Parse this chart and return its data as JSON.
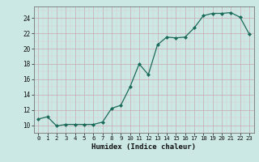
{
  "x": [
    0,
    1,
    2,
    3,
    4,
    5,
    6,
    7,
    8,
    9,
    10,
    11,
    12,
    13,
    14,
    15,
    16,
    17,
    18,
    19,
    20,
    21,
    22,
    23
  ],
  "y": [
    10.8,
    11.1,
    9.9,
    10.1,
    10.1,
    10.1,
    10.1,
    10.4,
    12.2,
    12.6,
    15.0,
    18.0,
    16.6,
    20.5,
    21.5,
    21.4,
    21.5,
    22.7,
    24.3,
    24.6,
    24.6,
    24.7,
    24.1,
    21.9
  ],
  "xlabel": "Humidex (Indice chaleur)",
  "ylim": [
    9,
    25.5
  ],
  "xlim": [
    -0.5,
    23.5
  ],
  "yticks": [
    10,
    12,
    14,
    16,
    18,
    20,
    22,
    24
  ],
  "xticks": [
    0,
    1,
    2,
    3,
    4,
    5,
    6,
    7,
    8,
    9,
    10,
    11,
    12,
    13,
    14,
    15,
    16,
    17,
    18,
    19,
    20,
    21,
    22,
    23
  ],
  "line_color": "#1a6b5a",
  "marker_color": "#1a6b5a",
  "bg_color": "#cce8e4",
  "grid_color_major": "#c8a8b0",
  "grid_color_minor": "#ddc8cc"
}
